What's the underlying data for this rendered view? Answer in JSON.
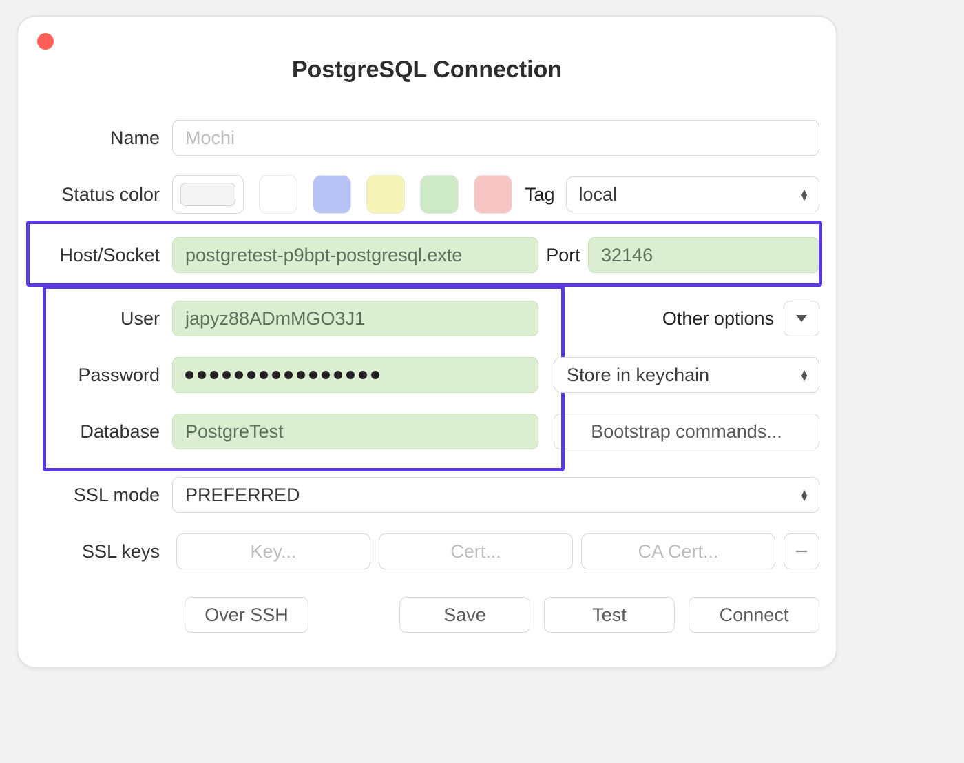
{
  "window": {
    "title": "PostgreSQL Connection",
    "close_dot_color": "#ff5f57"
  },
  "labels": {
    "name": "Name",
    "status_color": "Status color",
    "tag": "Tag",
    "host": "Host/Socket",
    "port": "Port",
    "user": "User",
    "other_options": "Other options",
    "password": "Password",
    "database": "Database",
    "ssl_mode": "SSL mode",
    "ssl_keys": "SSL keys"
  },
  "fields": {
    "name_placeholder": "Mochi",
    "host_value": "postgretest-p9bpt-postgresql.exte",
    "port_value": "32146",
    "user_value": "japyz88ADmMGO3J1",
    "password_dot_count": 16,
    "database_value": "PostgreTest"
  },
  "status_colors": {
    "white": "#ffffff",
    "blue": "#b6c3f4",
    "yellow": "#f5f4b4",
    "green": "#cde9c6",
    "red": "#f7c6c4",
    "swatch_border": "#e6e6e6"
  },
  "selects": {
    "tag_value": "local",
    "password_store_value": "Store in keychain",
    "ssl_mode_value": "PREFERRED"
  },
  "buttons": {
    "bootstrap": "Bootstrap commands...",
    "key": "Key...",
    "cert": "Cert...",
    "ca_cert": "CA Cert...",
    "over_ssh": "Over SSH",
    "save": "Save",
    "test": "Test",
    "connect": "Connect"
  },
  "colors": {
    "highlight_border": "#5a3ae0",
    "green_field_bg": "#dbeed2",
    "green_field_border": "#c8e0bb"
  }
}
